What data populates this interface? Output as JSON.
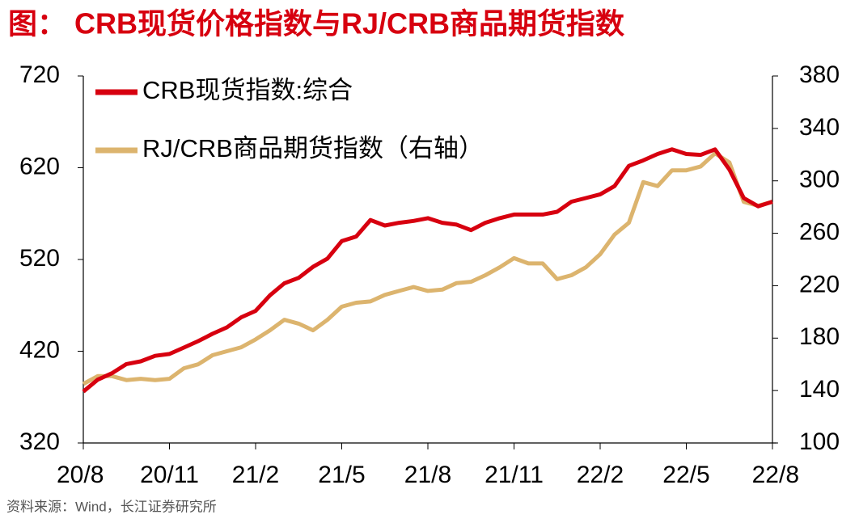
{
  "chart_data": {
    "type": "line",
    "title": "图： CRB现货价格指数与RJ/CRB商品期货指数",
    "source": "资料来源：Wind，长江证券研究所",
    "categories": [
      "20/8",
      null,
      null,
      null,
      null,
      null,
      "20/11",
      null,
      null,
      null,
      null,
      null,
      "21/2",
      null,
      null,
      null,
      null,
      null,
      "21/5",
      null,
      null,
      null,
      null,
      null,
      "21/8",
      null,
      null,
      null,
      null,
      null,
      "21/11",
      null,
      null,
      null,
      null,
      null,
      "22/2",
      null,
      null,
      null,
      null,
      null,
      "22/5",
      null,
      null,
      null,
      null,
      null,
      "22/8"
    ],
    "series": [
      {
        "name": "CRB现货指数:综合",
        "color": "#d7000f",
        "axis": "y",
        "values": [
          376,
          389,
          396,
          406,
          409,
          415,
          417,
          424,
          431,
          439,
          446,
          457,
          464,
          481,
          494,
          500,
          512,
          521,
          540,
          545,
          563,
          557,
          560,
          562,
          565,
          560,
          558,
          552,
          560,
          565,
          569,
          569,
          569,
          572,
          583,
          587,
          591,
          600,
          622,
          628,
          635,
          640,
          635,
          634,
          640,
          618,
          587,
          578,
          583
        ]
      },
      {
        "name": "RJ/CRB商品期货指数（右轴）",
        "color": "#dcb46e",
        "axis": "y2",
        "values": [
          145,
          151,
          151,
          148,
          149,
          148,
          149,
          157,
          160,
          167,
          170,
          173,
          179,
          186,
          194,
          191,
          186,
          194,
          204,
          207,
          208,
          213,
          216,
          219,
          216,
          217,
          222,
          223,
          228,
          234,
          241,
          237,
          237,
          225,
          228,
          234,
          244,
          259,
          268,
          299,
          296,
          308,
          308,
          311,
          321,
          314,
          284,
          281,
          284
        ]
      }
    ],
    "ylim": [
      320,
      720
    ],
    "yticks": [
      320,
      420,
      520,
      620,
      720
    ],
    "y2lim": [
      100,
      380
    ],
    "y2ticks": [
      100,
      140,
      180,
      220,
      260,
      300,
      340,
      380
    ],
    "grid": false,
    "legend": "upper left"
  }
}
